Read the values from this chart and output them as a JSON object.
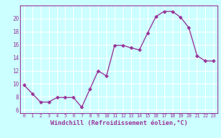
{
  "x": [
    0,
    1,
    2,
    3,
    4,
    5,
    6,
    7,
    8,
    9,
    10,
    11,
    12,
    13,
    14,
    15,
    16,
    17,
    18,
    19,
    20,
    21,
    22,
    23
  ],
  "y": [
    9.8,
    8.5,
    7.2,
    7.2,
    7.9,
    7.9,
    7.9,
    6.4,
    9.2,
    12.0,
    11.2,
    15.9,
    15.9,
    15.5,
    15.2,
    17.8,
    20.3,
    21.1,
    21.1,
    20.2,
    18.6,
    14.3,
    13.5,
    13.5
  ],
  "line_color": "#993399",
  "marker": "D",
  "markersize": 2.5,
  "linewidth": 1.0,
  "xlabel": "Windchill (Refroidissement éolien,°C)",
  "xlabel_fontsize": 6.5,
  "ylim": [
    5.5,
    22
  ],
  "xlim": [
    -0.5,
    23.5
  ],
  "yticks": [
    6,
    8,
    10,
    12,
    14,
    16,
    18,
    20
  ],
  "xticks": [
    0,
    1,
    2,
    3,
    4,
    5,
    6,
    7,
    8,
    9,
    10,
    11,
    12,
    13,
    14,
    15,
    16,
    17,
    18,
    19,
    20,
    21,
    22,
    23
  ],
  "background_color": "#ccffff",
  "grid_color": "#ffffff",
  "label_color": "#993399",
  "spine_color": "#993399",
  "tick_fontsize_x": 5.0,
  "tick_fontsize_y": 5.5
}
